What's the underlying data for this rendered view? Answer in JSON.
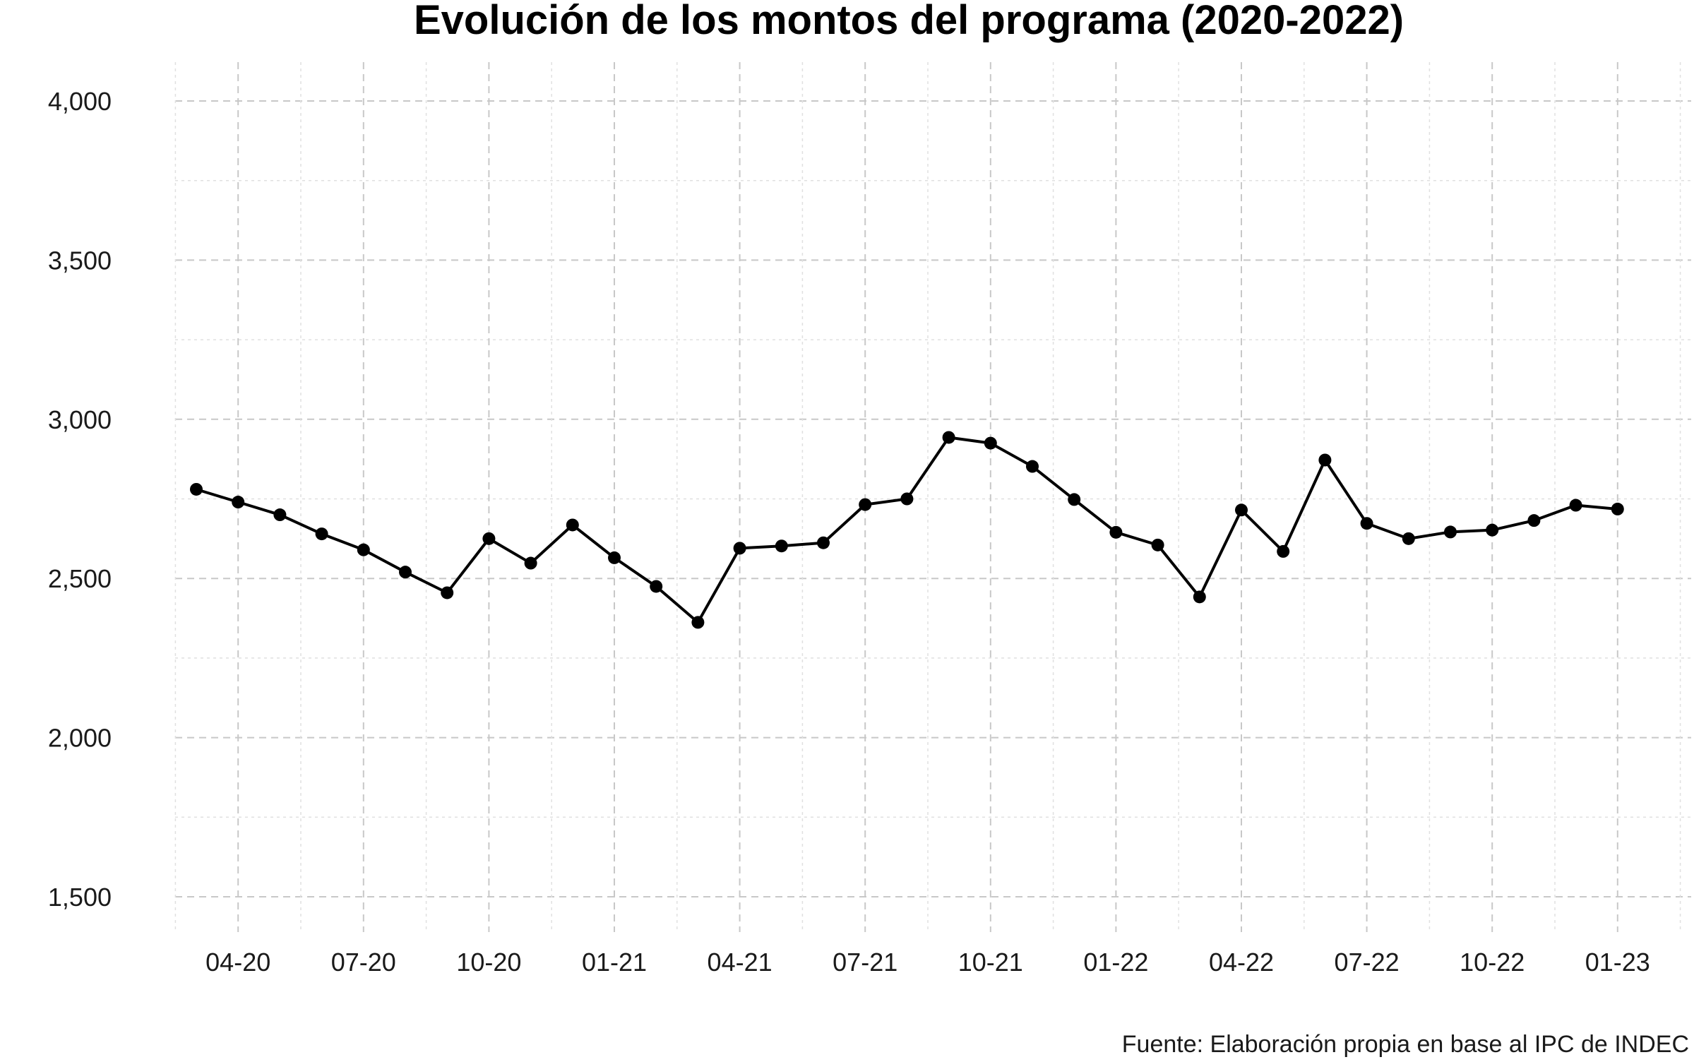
{
  "chart_data": {
    "type": "line",
    "title": "Evolución de los montos del programa (2020-2022)",
    "caption": "Fuente: Elaboración propia en base al IPC de INDEC",
    "xlabel": "",
    "ylabel": "",
    "ylim": [
      1500,
      4000
    ],
    "y_ticks": [
      "1,500",
      "2,000",
      "2,500",
      "3,000",
      "3,500",
      "4,000"
    ],
    "x_ticks": [
      "04-20",
      "07-20",
      "10-20",
      "01-21",
      "04-21",
      "07-21",
      "10-21",
      "01-22",
      "04-22",
      "07-22",
      "10-22",
      "01-23"
    ],
    "grid": true,
    "legend": "none",
    "colors": {
      "line": "#000000",
      "major_grid": "#c8c8c8",
      "minor_grid": "#e0e0e0"
    },
    "series": [
      {
        "x": [
          "03-20",
          "04-20",
          "05-20",
          "06-20",
          "07-20",
          "08-20",
          "09-20",
          "10-20",
          "11-20",
          "12-20",
          "01-21",
          "02-21",
          "03-21",
          "04-21",
          "05-21",
          "06-21",
          "07-21",
          "08-21",
          "09-21",
          "10-21",
          "11-21",
          "12-21",
          "01-22",
          "02-22",
          "03-22",
          "04-22",
          "05-22",
          "06-22",
          "07-22",
          "08-22",
          "09-22",
          "10-22",
          "11-22",
          "12-22",
          "01-23"
        ],
        "values": [
          2780,
          2740,
          2700,
          2640,
          2590,
          2520,
          2455,
          2625,
          2548,
          2668,
          2565,
          2475,
          2362,
          2595,
          2602,
          2612,
          2732,
          2750,
          2943,
          2925,
          2852,
          2748,
          2645,
          2605,
          2442,
          2715,
          2585,
          2872,
          2673,
          2625,
          2646,
          2652,
          2682,
          2730,
          2718
        ]
      }
    ]
  }
}
